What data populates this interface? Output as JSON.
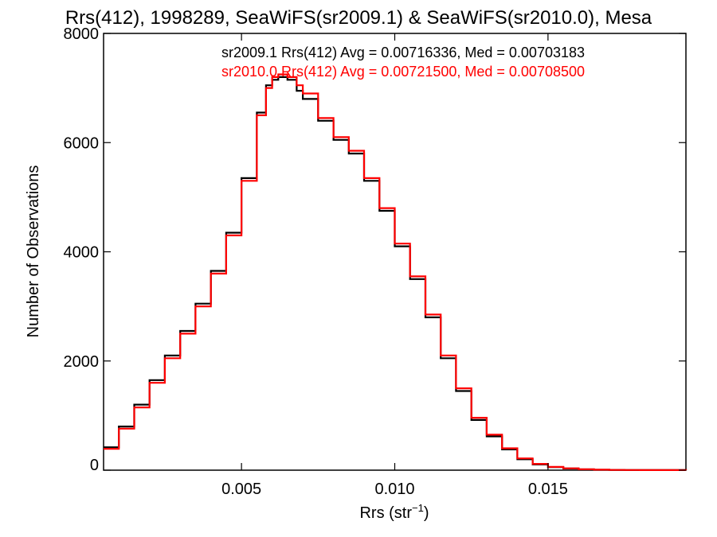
{
  "chart_data": {
    "type": "line",
    "title": "Rrs(412), 1998289, SeaWiFS(sr2009.1) & SeaWiFS(sr2010.0), Mesa",
    "xlabel": "Rrs (str",
    "xlabel_sup": "−1",
    "xlabel_close": ")",
    "ylabel": "Number of Observations",
    "xlim": [
      0.0005,
      0.0195
    ],
    "ylim": [
      0,
      8000
    ],
    "x_ticks": [
      0.005,
      0.01,
      0.015
    ],
    "x_tick_labels": [
      "0.005",
      "0.010",
      "0.015"
    ],
    "y_ticks": [
      0,
      2000,
      4000,
      6000,
      8000
    ],
    "y_tick_labels": [
      "0",
      "2000",
      "4000",
      "6000",
      "8000"
    ],
    "grid": false,
    "legend": "top-right",
    "step": "histogram",
    "x": [
      0.0005,
      0.001,
      0.0015,
      0.002,
      0.0025,
      0.003,
      0.0035,
      0.004,
      0.0045,
      0.005,
      0.0055,
      0.0058,
      0.006,
      0.0062,
      0.0065,
      0.0068,
      0.007,
      0.0075,
      0.008,
      0.0085,
      0.009,
      0.0095,
      0.01,
      0.0105,
      0.011,
      0.0115,
      0.012,
      0.0125,
      0.013,
      0.0135,
      0.014,
      0.0145,
      0.015,
      0.0155,
      0.016,
      0.0165,
      0.017,
      0.0175,
      0.018,
      0.0185,
      0.019,
      0.0195
    ],
    "series": [
      {
        "name": "sr2009.1 Rrs(412) Avg = 0.00716336, Med = 0.00703183",
        "color": "#000000",
        "values": [
          420,
          800,
          1200,
          1650,
          2100,
          2550,
          3050,
          3650,
          4350,
          5350,
          6550,
          7050,
          7150,
          7200,
          7150,
          6950,
          6800,
          6400,
          6050,
          5800,
          5300,
          4750,
          4100,
          3500,
          2800,
          2050,
          1450,
          920,
          620,
          380,
          200,
          105,
          55,
          30,
          15,
          8,
          4,
          3,
          2,
          1,
          1,
          0
        ]
      },
      {
        "name": "sr2010.0 Rrs(412) Avg = 0.00721500, Med = 0.00708500",
        "color": "#ff0000",
        "values": [
          390,
          760,
          1150,
          1600,
          2050,
          2500,
          3000,
          3600,
          4300,
          5300,
          6500,
          7000,
          7200,
          7250,
          7200,
          7050,
          6900,
          6450,
          6100,
          5850,
          5350,
          4800,
          4150,
          3550,
          2850,
          2100,
          1500,
          960,
          650,
          400,
          215,
          115,
          60,
          33,
          17,
          9,
          5,
          3,
          2,
          1,
          1,
          0
        ]
      }
    ]
  }
}
